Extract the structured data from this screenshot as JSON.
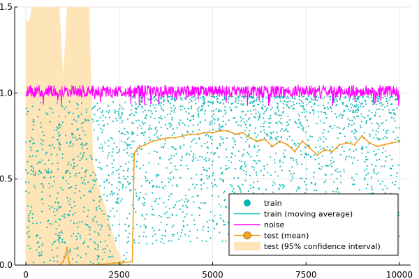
{
  "chart_data": {
    "type": "scatter",
    "title": "",
    "xlabel": "",
    "ylabel": "",
    "xlim": [
      -300,
      10300
    ],
    "ylim": [
      0.0,
      1.5
    ],
    "xticks": [
      0,
      2500,
      5000,
      7500,
      10000
    ],
    "xtick_labels": [
      "0",
      "2500",
      "5000",
      "7500",
      "10000"
    ],
    "yticks": [
      0.0,
      0.5,
      1.0,
      1.5
    ],
    "ytick_labels": [
      "0.0",
      "0.5",
      "1.0",
      "1.5"
    ],
    "grid": true,
    "legend_position": "bottom-right",
    "series": [
      {
        "name": "train",
        "kind": "scatter",
        "color": "#00b3b3",
        "x_range": [
          0,
          10000
        ],
        "description_levels": {
          "before_2800_min": 0.0,
          "before_2800_max": 0.95,
          "after_2800_min": 0.2,
          "after_2800_max": 0.98
        }
      },
      {
        "name": "train (moving average)",
        "kind": "line",
        "color": "#00b3b3"
      },
      {
        "name": "noise",
        "kind": "line",
        "color": "#ff00ff",
        "x_range": [
          0,
          10000
        ],
        "mean": 1.01,
        "spread": 0.035
      },
      {
        "name": "test (mean)",
        "kind": "line+marker",
        "color": "#f0a020",
        "x": [
          900,
          1000,
          1050,
          1100,
          1150,
          1200,
          1700,
          1800,
          2850,
          2900,
          3000,
          3200,
          3400,
          3600,
          3800,
          4000,
          4200,
          4400,
          4600,
          4800,
          5000,
          5200,
          5400,
          5600,
          5800,
          6000,
          6200,
          6400,
          6600,
          6800,
          7000,
          7200,
          7400,
          7600,
          7800,
          8000,
          8200,
          8400,
          8600,
          8800,
          9000,
          9200,
          9400,
          9600,
          9800,
          10000
        ],
        "y": [
          0.0,
          0.02,
          0.05,
          0.1,
          0.02,
          0.0,
          0.0,
          0.0,
          0.02,
          0.65,
          0.68,
          0.7,
          0.72,
          0.73,
          0.74,
          0.74,
          0.75,
          0.76,
          0.76,
          0.77,
          0.77,
          0.78,
          0.78,
          0.76,
          0.77,
          0.74,
          0.72,
          0.73,
          0.69,
          0.72,
          0.7,
          0.66,
          0.72,
          0.68,
          0.64,
          0.67,
          0.66,
          0.7,
          0.71,
          0.7,
          0.75,
          0.71,
          0.69,
          0.7,
          0.71,
          0.72
        ]
      },
      {
        "name": "test (95% confidence interval)",
        "kind": "band",
        "color": "#fde5b8",
        "x": [
          0,
          100,
          150,
          250,
          400,
          500,
          600,
          700,
          800,
          900,
          1000,
          1100,
          1200,
          1300,
          1400,
          1500,
          1600,
          1700,
          1800,
          1900,
          2000,
          2100,
          2200,
          2300,
          2400,
          2500,
          2600,
          2700,
          2800,
          2850
        ],
        "lower": [
          0.0,
          0.0,
          0.0,
          0.0,
          0.0,
          0.0,
          0.0,
          0.0,
          0.0,
          0.0,
          0.0,
          0.0,
          0.0,
          0.0,
          0.0,
          0.0,
          0.0,
          0.0,
          0.0,
          0.0,
          0.0,
          0.0,
          0.0,
          0.0,
          0.0,
          0.0,
          0.0,
          0.0,
          0.0,
          0.0
        ],
        "upper": [
          1.42,
          1.42,
          1.5,
          1.5,
          1.5,
          1.5,
          1.5,
          1.5,
          1.5,
          1.5,
          1.1,
          1.5,
          1.5,
          1.5,
          1.5,
          1.5,
          1.5,
          1.5,
          0.6,
          0.5,
          0.42,
          0.36,
          0.28,
          0.2,
          0.12,
          0.06,
          0.02,
          0.0,
          0.0,
          0.0
        ]
      }
    ]
  }
}
